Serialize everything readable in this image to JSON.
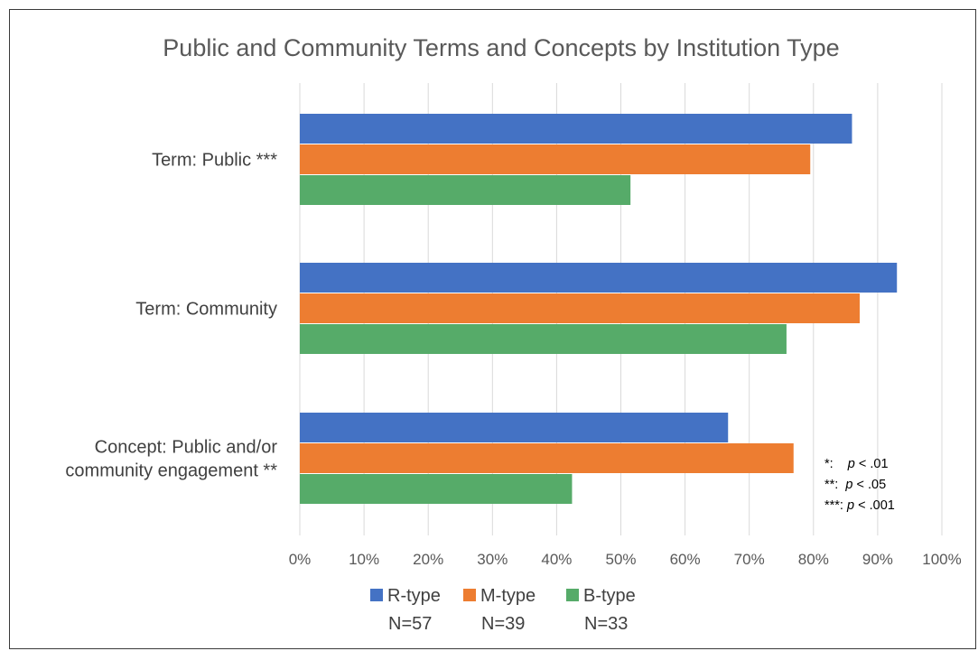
{
  "chart_data": {
    "type": "bar",
    "orientation": "horizontal",
    "title": "Public and Community Terms and Concepts by Institution Type",
    "categories": [
      [
        "Term: Public ***"
      ],
      [
        "Term: Community"
      ],
      [
        "Concept: Public and/or",
        "community engagement **"
      ]
    ],
    "series": [
      {
        "name": "R-type",
        "n_label": "N=57",
        "color": "#4472C4",
        "values": [
          86,
          93,
          66.7
        ]
      },
      {
        "name": "M-type",
        "n_label": "N=39",
        "color": "#ED7D31",
        "values": [
          79.5,
          87.2,
          76.9
        ]
      },
      {
        "name": "B-type",
        "n_label": "N=33",
        "color": "#56AB69",
        "values": [
          51.5,
          75.8,
          42.4
        ]
      }
    ],
    "xlim": [
      0,
      100
    ],
    "x_ticks": [
      "0%",
      "10%",
      "20%",
      "30%",
      "40%",
      "50%",
      "60%",
      "70%",
      "80%",
      "90%",
      "100%"
    ],
    "grid": "vertical",
    "legend_position": "bottom",
    "gridline_color": "#D9D9D9",
    "significance_note": [
      {
        "stars": "*:",
        "gap": "    ",
        "p": "p",
        "rest": " < .01"
      },
      {
        "stars": "**:",
        "gap": "  ",
        "p": "p",
        "rest": " < .05"
      },
      {
        "stars": "***:",
        "gap": " ",
        "p": "p",
        "rest": " < .001"
      }
    ]
  }
}
